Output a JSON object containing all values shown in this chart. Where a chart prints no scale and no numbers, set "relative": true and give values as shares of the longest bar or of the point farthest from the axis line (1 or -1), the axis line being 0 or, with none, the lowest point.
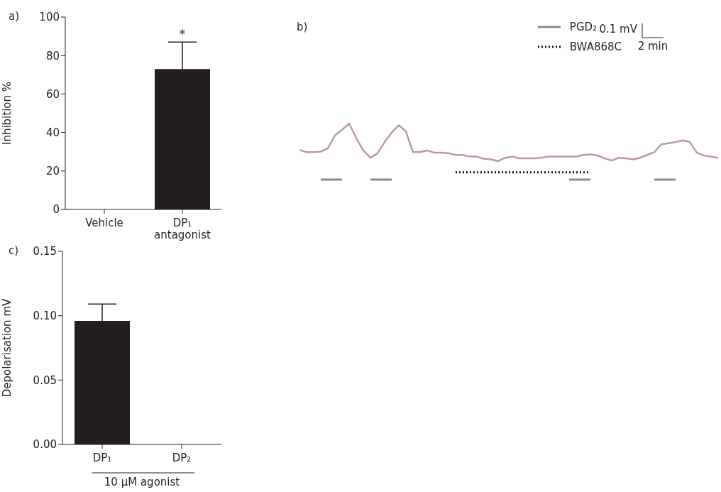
{
  "chart_data": [
    {
      "type": "bar",
      "title": "a)",
      "ylabel": "Inhibition %",
      "categories": [
        "Vehicle",
        "DP₁\nantagonist"
      ],
      "values": [
        0,
        73
      ],
      "errors": [
        null,
        14
      ],
      "color": "#231f20",
      "ylim": [
        0,
        100
      ],
      "yticks": [
        0,
        20,
        40,
        60,
        80,
        100
      ],
      "annotations": [
        {
          "text": "*",
          "x": "DP₁\nantagonist",
          "y": 87
        }
      ]
    },
    {
      "type": "line",
      "title": "b)",
      "relative": true,
      "tick_labels": false,
      "marker": "none",
      "line_style": "solid",
      "legend": "top right",
      "categories": [
        null,
        null,
        null,
        null,
        null,
        null,
        null,
        null,
        null,
        null,
        null,
        null,
        null,
        null,
        null,
        null,
        null,
        null,
        null,
        null,
        null,
        null,
        null,
        null,
        null,
        null,
        null,
        null,
        null,
        null,
        null,
        null,
        null,
        null,
        null,
        null,
        null,
        null,
        null,
        null,
        null,
        null,
        null,
        null,
        null,
        null,
        null,
        null,
        null,
        null,
        null,
        null,
        null,
        null,
        null,
        null,
        null,
        null,
        null,
        null
      ],
      "series": [
        {
          "color": "#b89aa3",
          "values": [
            0.53,
            0.49,
            0.49,
            0.5,
            0.56,
            0.79,
            0.89,
            1.0,
            0.74,
            0.52,
            0.39,
            0.47,
            0.67,
            0.84,
            0.97,
            0.86,
            0.49,
            0.49,
            0.52,
            0.48,
            0.48,
            0.47,
            0.44,
            0.44,
            0.41,
            0.41,
            0.37,
            0.36,
            0.33,
            0.39,
            0.41,
            0.38,
            0.38,
            0.38,
            0.39,
            0.41,
            0.41,
            0.41,
            0.41,
            0.41,
            0.44,
            0.45,
            0.43,
            0.38,
            0.34,
            0.39,
            0.38,
            0.36,
            0.39,
            0.44,
            0.49,
            0.63,
            0.65,
            0.67,
            0.7,
            0.67,
            0.48,
            0.43,
            0.41,
            0.39
          ]
        },
        {
          "name": "PGD₂",
          "color": "#8a8a8a",
          "values": [
            null,
            null,
            null,
            0,
            0,
            0,
            0,
            null,
            null,
            null,
            0,
            0,
            0,
            0,
            null,
            null,
            null,
            null,
            null,
            null,
            null,
            null,
            null,
            null,
            null,
            null,
            null,
            null,
            null,
            null,
            null,
            null,
            null,
            null,
            null,
            null,
            null,
            null,
            0,
            0,
            0,
            0,
            null,
            null,
            null,
            null,
            null,
            null,
            null,
            null,
            0,
            0,
            0,
            0,
            null,
            null,
            null,
            null,
            null,
            null
          ]
        },
        {
          "name": "BWA868C",
          "color": "#111111",
          "line_style": "dotted",
          "values": [
            null,
            null,
            null,
            null,
            null,
            null,
            null,
            null,
            null,
            null,
            null,
            null,
            null,
            null,
            null,
            null,
            null,
            null,
            null,
            null,
            null,
            null,
            0.13,
            0.13,
            0.13,
            0.13,
            0.13,
            0.13,
            0.13,
            0.13,
            0.13,
            0.13,
            0.13,
            0.13,
            0.13,
            0.13,
            0.13,
            0.13,
            0.13,
            0.13,
            0.13,
            0.13,
            null,
            null,
            null,
            null,
            null,
            null,
            null,
            null,
            null,
            null,
            null,
            null,
            null,
            null,
            null,
            null,
            null,
            null
          ]
        }
      ],
      "annotations": [
        "0.1 mV",
        "2 min"
      ]
    },
    {
      "type": "bar",
      "title": "c)",
      "ylabel": "Depolarisation mV",
      "xlabel": "10 µM agonist",
      "categories": [
        "DP₁",
        "DP₂"
      ],
      "values": [
        0.096,
        0
      ],
      "errors": [
        0.013,
        null
      ],
      "color": "#231f20",
      "ylim": [
        0,
        0.15
      ],
      "yticks": [
        {
          "value": 0,
          "label": "0.00"
        },
        {
          "value": 0.05,
          "label": "0.05"
        },
        {
          "value": 0.1,
          "label": "0.10"
        },
        {
          "value": 0.15,
          "label": "0.15"
        }
      ]
    }
  ]
}
